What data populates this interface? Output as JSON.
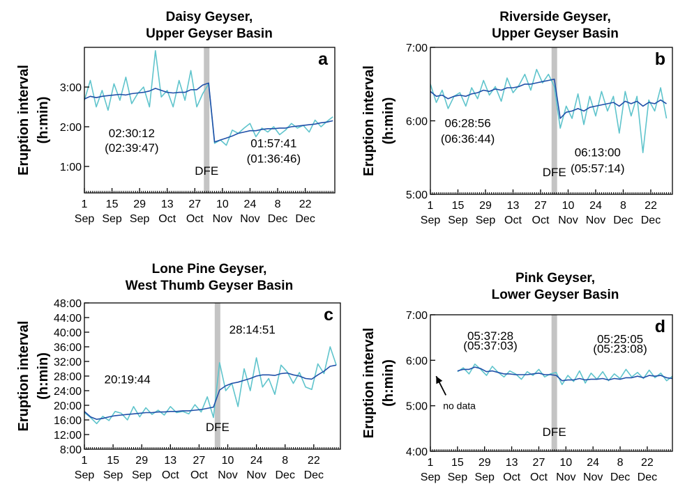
{
  "chart_data": [
    {
      "type": "line",
      "panel": "a",
      "title": "Daisy Geyser,",
      "subtitle": "Upper Geyser Basin",
      "ylabel": "Eruption interval",
      "ylabel_unit": "(h:min)",
      "ylim_min": [
        20,
        240
      ],
      "yticks": [
        {
          "label": "1:00",
          "min": 60
        },
        {
          "label": "2:00",
          "min": 120
        },
        {
          "label": "3:00",
          "min": 180
        }
      ],
      "xlim": [
        1,
        128
      ],
      "xticks": [
        {
          "day": 1,
          "d": "1",
          "m": "Sep"
        },
        {
          "day": 15,
          "d": "15",
          "m": "Sep"
        },
        {
          "day": 29,
          "d": "29",
          "m": "Sep"
        },
        {
          "day": 43,
          "d": "13",
          "m": "Oct"
        },
        {
          "day": 57,
          "d": "27",
          "m": "Oct"
        },
        {
          "day": 71,
          "d": "10",
          "m": "Nov"
        },
        {
          "day": 85,
          "d": "24",
          "m": "Nov"
        },
        {
          "day": 99,
          "d": "8",
          "m": "Dec"
        },
        {
          "day": 113,
          "d": "22",
          "m": "Dec"
        }
      ],
      "dfe": {
        "label": "DFE",
        "day": 63
      },
      "annotations": [
        {
          "text": "02:30:12",
          "day": 25,
          "min": 104
        },
        {
          "text": "(02:39:47)",
          "day": 25,
          "min": 82
        },
        {
          "text": "01:57:41",
          "day": 97,
          "min": 89
        },
        {
          "text": "(01:36:46)",
          "day": 97,
          "min": 66
        }
      ],
      "series": [
        {
          "key": "raw",
          "color": "#5fc4cc",
          "x": [
            1,
            4,
            7,
            10,
            13,
            16,
            19,
            22,
            25,
            28,
            31,
            34,
            37,
            40,
            43,
            46,
            49,
            52,
            55,
            58,
            61,
            64,
            67,
            70,
            73,
            76,
            79,
            82,
            85,
            88,
            91,
            94,
            97,
            100,
            103,
            106,
            109,
            112,
            115,
            118,
            121,
            124,
            127
          ],
          "y": [
            160,
            190,
            150,
            175,
            145,
            185,
            160,
            195,
            155,
            170,
            180,
            150,
            235,
            165,
            175,
            150,
            190,
            160,
            205,
            150,
            170,
            185,
            95,
            100,
            92,
            115,
            110,
            118,
            125,
            105,
            118,
            112,
            120,
            108,
            115,
            125,
            118,
            122,
            112,
            130,
            120,
            128,
            135
          ]
        },
        {
          "key": "mean",
          "color": "#1f4fa8",
          "x": [
            1,
            4,
            7,
            10,
            13,
            16,
            19,
            22,
            25,
            28,
            31,
            34,
            37,
            40,
            43,
            46,
            49,
            52,
            55,
            58,
            61,
            64,
            67,
            70,
            73,
            76,
            79,
            82,
            85,
            88,
            91,
            94,
            97,
            100,
            103,
            106,
            109,
            112,
            115,
            118,
            121,
            124,
            127
          ],
          "y": [
            162,
            166,
            164,
            166,
            167,
            168,
            169,
            168,
            170,
            171,
            172,
            174,
            178,
            175,
            172,
            171,
            172,
            172,
            176,
            176,
            183,
            186,
            97,
            100,
            103,
            106,
            110,
            112,
            114,
            114,
            116,
            117,
            117,
            118,
            118,
            120,
            121,
            122,
            123,
            124,
            126,
            127,
            129
          ]
        }
      ]
    },
    {
      "type": "line",
      "panel": "b",
      "title": "Riverside Geyser,",
      "subtitle": "Upper Geyser Basin",
      "ylabel": "Eruption interval",
      "ylabel_unit": "(h:min)",
      "ylim_min": [
        300,
        420
      ],
      "yticks": [
        {
          "label": "5:00",
          "min": 300
        },
        {
          "label": "6:00",
          "min": 360
        },
        {
          "label": "7:00",
          "min": 420
        }
      ],
      "xlim": [
        1,
        124
      ],
      "xticks": [
        {
          "day": 1,
          "d": "1",
          "m": "Sep"
        },
        {
          "day": 15,
          "d": "15",
          "m": "Sep"
        },
        {
          "day": 29,
          "d": "29",
          "m": "Sep"
        },
        {
          "day": 43,
          "d": "13",
          "m": "Oct"
        },
        {
          "day": 57,
          "d": "27",
          "m": "Oct"
        },
        {
          "day": 71,
          "d": "10",
          "m": "Nov"
        },
        {
          "day": 85,
          "d": "24",
          "m": "Nov"
        },
        {
          "day": 99,
          "d": "8",
          "m": "Dec"
        },
        {
          "day": 113,
          "d": "22",
          "m": "Dec"
        }
      ],
      "dfe": {
        "label": "DFE",
        "day": 64
      },
      "annotations": [
        {
          "text": "06:28:56",
          "day": 20,
          "min": 355
        },
        {
          "text": "(06:36:44)",
          "day": 20,
          "min": 342
        },
        {
          "text": "06:13:00",
          "day": 86,
          "min": 331
        },
        {
          "text": "(05:57:14)",
          "day": 86,
          "min": 318
        }
      ],
      "series": [
        {
          "key": "raw",
          "color": "#5fc4cc",
          "x": [
            1,
            4,
            7,
            10,
            13,
            16,
            19,
            22,
            25,
            28,
            31,
            34,
            37,
            40,
            43,
            46,
            49,
            52,
            55,
            58,
            61,
            64,
            67,
            70,
            73,
            76,
            79,
            82,
            85,
            88,
            91,
            94,
            97,
            100,
            103,
            106,
            109,
            112,
            115,
            118,
            121
          ],
          "y": [
            390,
            375,
            385,
            370,
            380,
            383,
            372,
            387,
            378,
            393,
            381,
            388,
            376,
            395,
            383,
            389,
            398,
            385,
            402,
            391,
            398,
            388,
            354,
            372,
            362,
            382,
            357,
            380,
            364,
            384,
            368,
            380,
            350,
            384,
            364,
            380,
            334,
            377,
            368,
            387,
            362
          ]
        },
        {
          "key": "mean",
          "color": "#1f4fa8",
          "x": [
            1,
            4,
            7,
            10,
            13,
            16,
            19,
            22,
            25,
            28,
            31,
            34,
            37,
            40,
            43,
            46,
            49,
            52,
            55,
            58,
            61,
            64,
            67,
            70,
            73,
            76,
            79,
            82,
            85,
            88,
            91,
            94,
            97,
            100,
            103,
            106,
            109,
            112,
            115,
            118,
            121
          ],
          "y": [
            384,
            380,
            381,
            378,
            380,
            381,
            380,
            382,
            383,
            385,
            384,
            386,
            385,
            387,
            387,
            388,
            390,
            390,
            391,
            392,
            393,
            394,
            362,
            367,
            368,
            370,
            368,
            371,
            372,
            373,
            374,
            375,
            372,
            376,
            374,
            376,
            372,
            375,
            374,
            377,
            374
          ]
        }
      ]
    },
    {
      "type": "line",
      "panel": "c",
      "title": "Lone Pine Geyser,",
      "subtitle": "West Thumb Geyser Basin",
      "ylabel": "Eruption interval",
      "ylabel_unit": "(h:min)",
      "ylim_min": [
        480,
        2880
      ],
      "yticks": [
        {
          "label": "8:00",
          "min": 480
        },
        {
          "label": "12:00",
          "min": 720
        },
        {
          "label": "16:00",
          "min": 960
        },
        {
          "label": "20:00",
          "min": 1200
        },
        {
          "label": "24:00",
          "min": 1440
        },
        {
          "label": "28:00",
          "min": 1680
        },
        {
          "label": "32:00",
          "min": 1920
        },
        {
          "label": "36:00",
          "min": 2160
        },
        {
          "label": "40:00",
          "min": 2400
        },
        {
          "label": "44:00",
          "min": 2640
        },
        {
          "label": "48:00",
          "min": 2880
        }
      ],
      "xlim": [
        1,
        126
      ],
      "xticks": [
        {
          "day": 1,
          "d": "1",
          "m": "Sep"
        },
        {
          "day": 15,
          "d": "15",
          "m": "Sep"
        },
        {
          "day": 29,
          "d": "29",
          "m": "Sep"
        },
        {
          "day": 43,
          "d": "13",
          "m": "Oct"
        },
        {
          "day": 57,
          "d": "27",
          "m": "Oct"
        },
        {
          "day": 71,
          "d": "10",
          "m": "Nov"
        },
        {
          "day": 85,
          "d": "24",
          "m": "Nov"
        },
        {
          "day": 99,
          "d": "8",
          "m": "Dec"
        },
        {
          "day": 113,
          "d": "22",
          "m": "Dec"
        }
      ],
      "dfe": {
        "label": "DFE",
        "day": 66
      },
      "annotations": [
        {
          "text": "20:19:44",
          "day": 22,
          "min": 1560
        },
        {
          "text": "28:14:51",
          "day": 83,
          "min": 2380
        }
      ],
      "series": [
        {
          "key": "raw",
          "color": "#5fc4cc",
          "x": [
            1,
            4,
            7,
            10,
            13,
            16,
            19,
            22,
            25,
            28,
            31,
            34,
            37,
            40,
            43,
            46,
            49,
            52,
            55,
            58,
            61,
            64,
            67,
            70,
            73,
            76,
            79,
            82,
            85,
            88,
            91,
            94,
            97,
            100,
            103,
            106,
            109,
            112,
            115,
            118,
            121,
            124
          ],
          "y": [
            1080,
            1000,
            900,
            1020,
            950,
            1100,
            1070,
            960,
            1180,
            1010,
            1160,
            1050,
            1120,
            1040,
            1180,
            1080,
            1100,
            1060,
            1210,
            1090,
            1340,
            1000,
            1900,
            1440,
            1560,
            1180,
            1800,
            1440,
            1980,
            1500,
            1640,
            1380,
            1860,
            1750,
            1560,
            1740,
            1500,
            1460,
            1880,
            1720,
            2160,
            1860
          ]
        },
        {
          "key": "mean",
          "color": "#1f4fa8",
          "x": [
            1,
            4,
            7,
            10,
            13,
            16,
            19,
            22,
            25,
            28,
            31,
            34,
            37,
            40,
            43,
            46,
            49,
            52,
            55,
            58,
            61,
            64,
            67,
            70,
            73,
            76,
            79,
            82,
            85,
            88,
            91,
            94,
            97,
            100,
            103,
            106,
            109,
            112,
            115,
            118,
            121,
            124
          ],
          "y": [
            1100,
            1010,
            970,
            985,
            1010,
            1030,
            1040,
            1050,
            1060,
            1070,
            1080,
            1080,
            1090,
            1090,
            1100,
            1100,
            1110,
            1110,
            1120,
            1130,
            1150,
            1170,
            1450,
            1520,
            1560,
            1580,
            1610,
            1640,
            1680,
            1700,
            1700,
            1690,
            1720,
            1730,
            1700,
            1680,
            1640,
            1630,
            1700,
            1760,
            1840,
            1860
          ]
        }
      ]
    },
    {
      "type": "line",
      "panel": "d",
      "title": "Pink Geyser,",
      "subtitle": "Lower Geyser Basin",
      "ylabel": "Eruption interval",
      "ylabel_unit": "(h:min)",
      "ylim_min": [
        240,
        420
      ],
      "yticks": [
        {
          "label": "4:00",
          "min": 240
        },
        {
          "label": "5:00",
          "min": 300
        },
        {
          "label": "6:00",
          "min": 360
        },
        {
          "label": "7:00",
          "min": 420
        }
      ],
      "xlim": [
        1,
        126
      ],
      "xticks": [
        {
          "day": 1,
          "d": "1",
          "m": "Sep"
        },
        {
          "day": 15,
          "d": "15",
          "m": "Sep"
        },
        {
          "day": 29,
          "d": "29",
          "m": "Sep"
        },
        {
          "day": 43,
          "d": "13",
          "m": "Oct"
        },
        {
          "day": 57,
          "d": "27",
          "m": "Oct"
        },
        {
          "day": 71,
          "d": "10",
          "m": "Nov"
        },
        {
          "day": 85,
          "d": "24",
          "m": "Nov"
        },
        {
          "day": 99,
          "d": "8",
          "m": "Dec"
        },
        {
          "day": 113,
          "d": "22",
          "m": "Dec"
        }
      ],
      "dfe": {
        "label": "DFE",
        "day": 65
      },
      "annotations": [
        {
          "text": "05:37:28",
          "day": 32,
          "min": 387
        },
        {
          "text": "(05:37:03)",
          "day": 32,
          "min": 374
        },
        {
          "text": "05:25:05",
          "day": 99,
          "min": 383
        },
        {
          "text": "(05:23:08)",
          "day": 99,
          "min": 370
        }
      ],
      "note": {
        "text": "no data",
        "arrow_from": [
          9,
          314
        ],
        "arrow_to": [
          4,
          339
        ]
      },
      "series": [
        {
          "key": "raw",
          "color": "#5fc4cc",
          "x": [
            15,
            18,
            21,
            24,
            27,
            30,
            33,
            36,
            39,
            42,
            45,
            48,
            51,
            54,
            57,
            60,
            63,
            66,
            69,
            72,
            75,
            78,
            81,
            84,
            87,
            90,
            93,
            96,
            99,
            102,
            105,
            108,
            111,
            114,
            117,
            120,
            123,
            126
          ],
          "y": [
            345,
            350,
            342,
            355,
            348,
            340,
            352,
            344,
            338,
            346,
            342,
            335,
            345,
            340,
            348,
            338,
            342,
            344,
            328,
            340,
            332,
            346,
            330,
            343,
            335,
            345,
            333,
            342,
            336,
            348,
            338,
            344,
            336,
            347,
            337,
            343,
            333,
            339
          ]
        },
        {
          "key": "mean",
          "color": "#1f4fa8",
          "x": [
            15,
            18,
            21,
            24,
            27,
            30,
            33,
            36,
            39,
            42,
            45,
            48,
            51,
            54,
            57,
            60,
            63,
            66,
            69,
            72,
            75,
            78,
            81,
            84,
            87,
            90,
            93,
            96,
            99,
            102,
            105,
            108,
            111,
            114,
            117,
            120,
            123,
            126
          ],
          "y": [
            346,
            348,
            348,
            351,
            349,
            345,
            346,
            344,
            342,
            342,
            341,
            341,
            341,
            342,
            343,
            341,
            341,
            340,
            333,
            334,
            334,
            336,
            334,
            335,
            335,
            336,
            334,
            336,
            335,
            337,
            337,
            339,
            337,
            340,
            339,
            340,
            337,
            336
          ]
        }
      ]
    }
  ]
}
